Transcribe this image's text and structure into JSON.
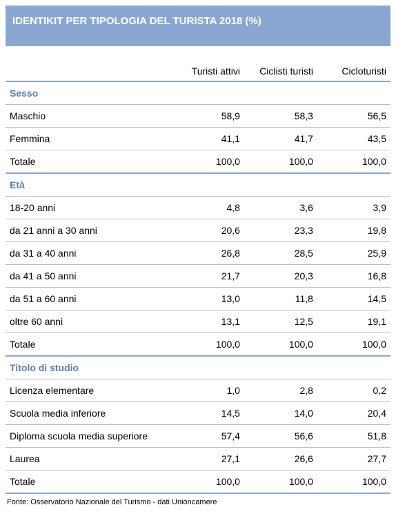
{
  "title": "IDENTIKIT PER TIPOLOGIA DEL TURISTA 2018 (%)",
  "columns": [
    "Turisti attivi",
    "Ciclisti turisti",
    "Cicloturisti"
  ],
  "sections": [
    {
      "name": "Sesso",
      "rows": [
        {
          "label": "Maschio",
          "v": [
            "58,9",
            "58,3",
            "56,5"
          ]
        },
        {
          "label": "Femmina",
          "v": [
            "41,1",
            "41,7",
            "43,5"
          ]
        },
        {
          "label": "Totale",
          "v": [
            "100,0",
            "100,0",
            "100,0"
          ],
          "total": true
        }
      ]
    },
    {
      "name": "Età",
      "rows": [
        {
          "label": "18-20 anni",
          "v": [
            "4,8",
            "3,6",
            "3,9"
          ]
        },
        {
          "label": "da 21 anni a 30 anni",
          "v": [
            "20,6",
            "23,3",
            "19,8"
          ]
        },
        {
          "label": "da 31 a 40 anni",
          "v": [
            "26,8",
            "28,5",
            "25,9"
          ]
        },
        {
          "label": "da 41 a 50 anni",
          "v": [
            "21,7",
            "20,3",
            "16,8"
          ]
        },
        {
          "label": "da 51 a 60 anni",
          "v": [
            "13,0",
            "11,8",
            "14,5"
          ]
        },
        {
          "label": "oltre 60 anni",
          "v": [
            "13,1",
            "12,5",
            "19,1"
          ]
        },
        {
          "label": "Totale",
          "v": [
            "100,0",
            "100,0",
            "100,0"
          ],
          "total": true
        }
      ]
    },
    {
      "name": "Titolo di studio",
      "rows": [
        {
          "label": "Licenza elementare",
          "v": [
            "1,0",
            "2,8",
            "0,2"
          ]
        },
        {
          "label": "Scuola media inferiore",
          "v": [
            "14,5",
            "14,0",
            "20,4"
          ]
        },
        {
          "label": "Diploma scuola media superiore",
          "v": [
            "57,4",
            "56,6",
            "51,8"
          ]
        },
        {
          "label": "Laurea",
          "v": [
            "27,1",
            "26,6",
            "27,7"
          ]
        },
        {
          "label": "Totale",
          "v": [
            "100,0",
            "100,0",
            "100,0"
          ],
          "total": true
        }
      ]
    }
  ],
  "source": "Fonte: Osservatorio Nazionale del Turismo - dati Unioncamere",
  "style": {
    "header_bg": "#8aa7d2",
    "header_fg": "#ffffff",
    "section_fg": "#5a7fb5",
    "divider_color": "#bcbcbc",
    "section_divider_color": "#8aa7d2",
    "font_family": "Arial",
    "title_fontsize": 15,
    "body_fontsize": 14,
    "source_fontsize": 11
  }
}
